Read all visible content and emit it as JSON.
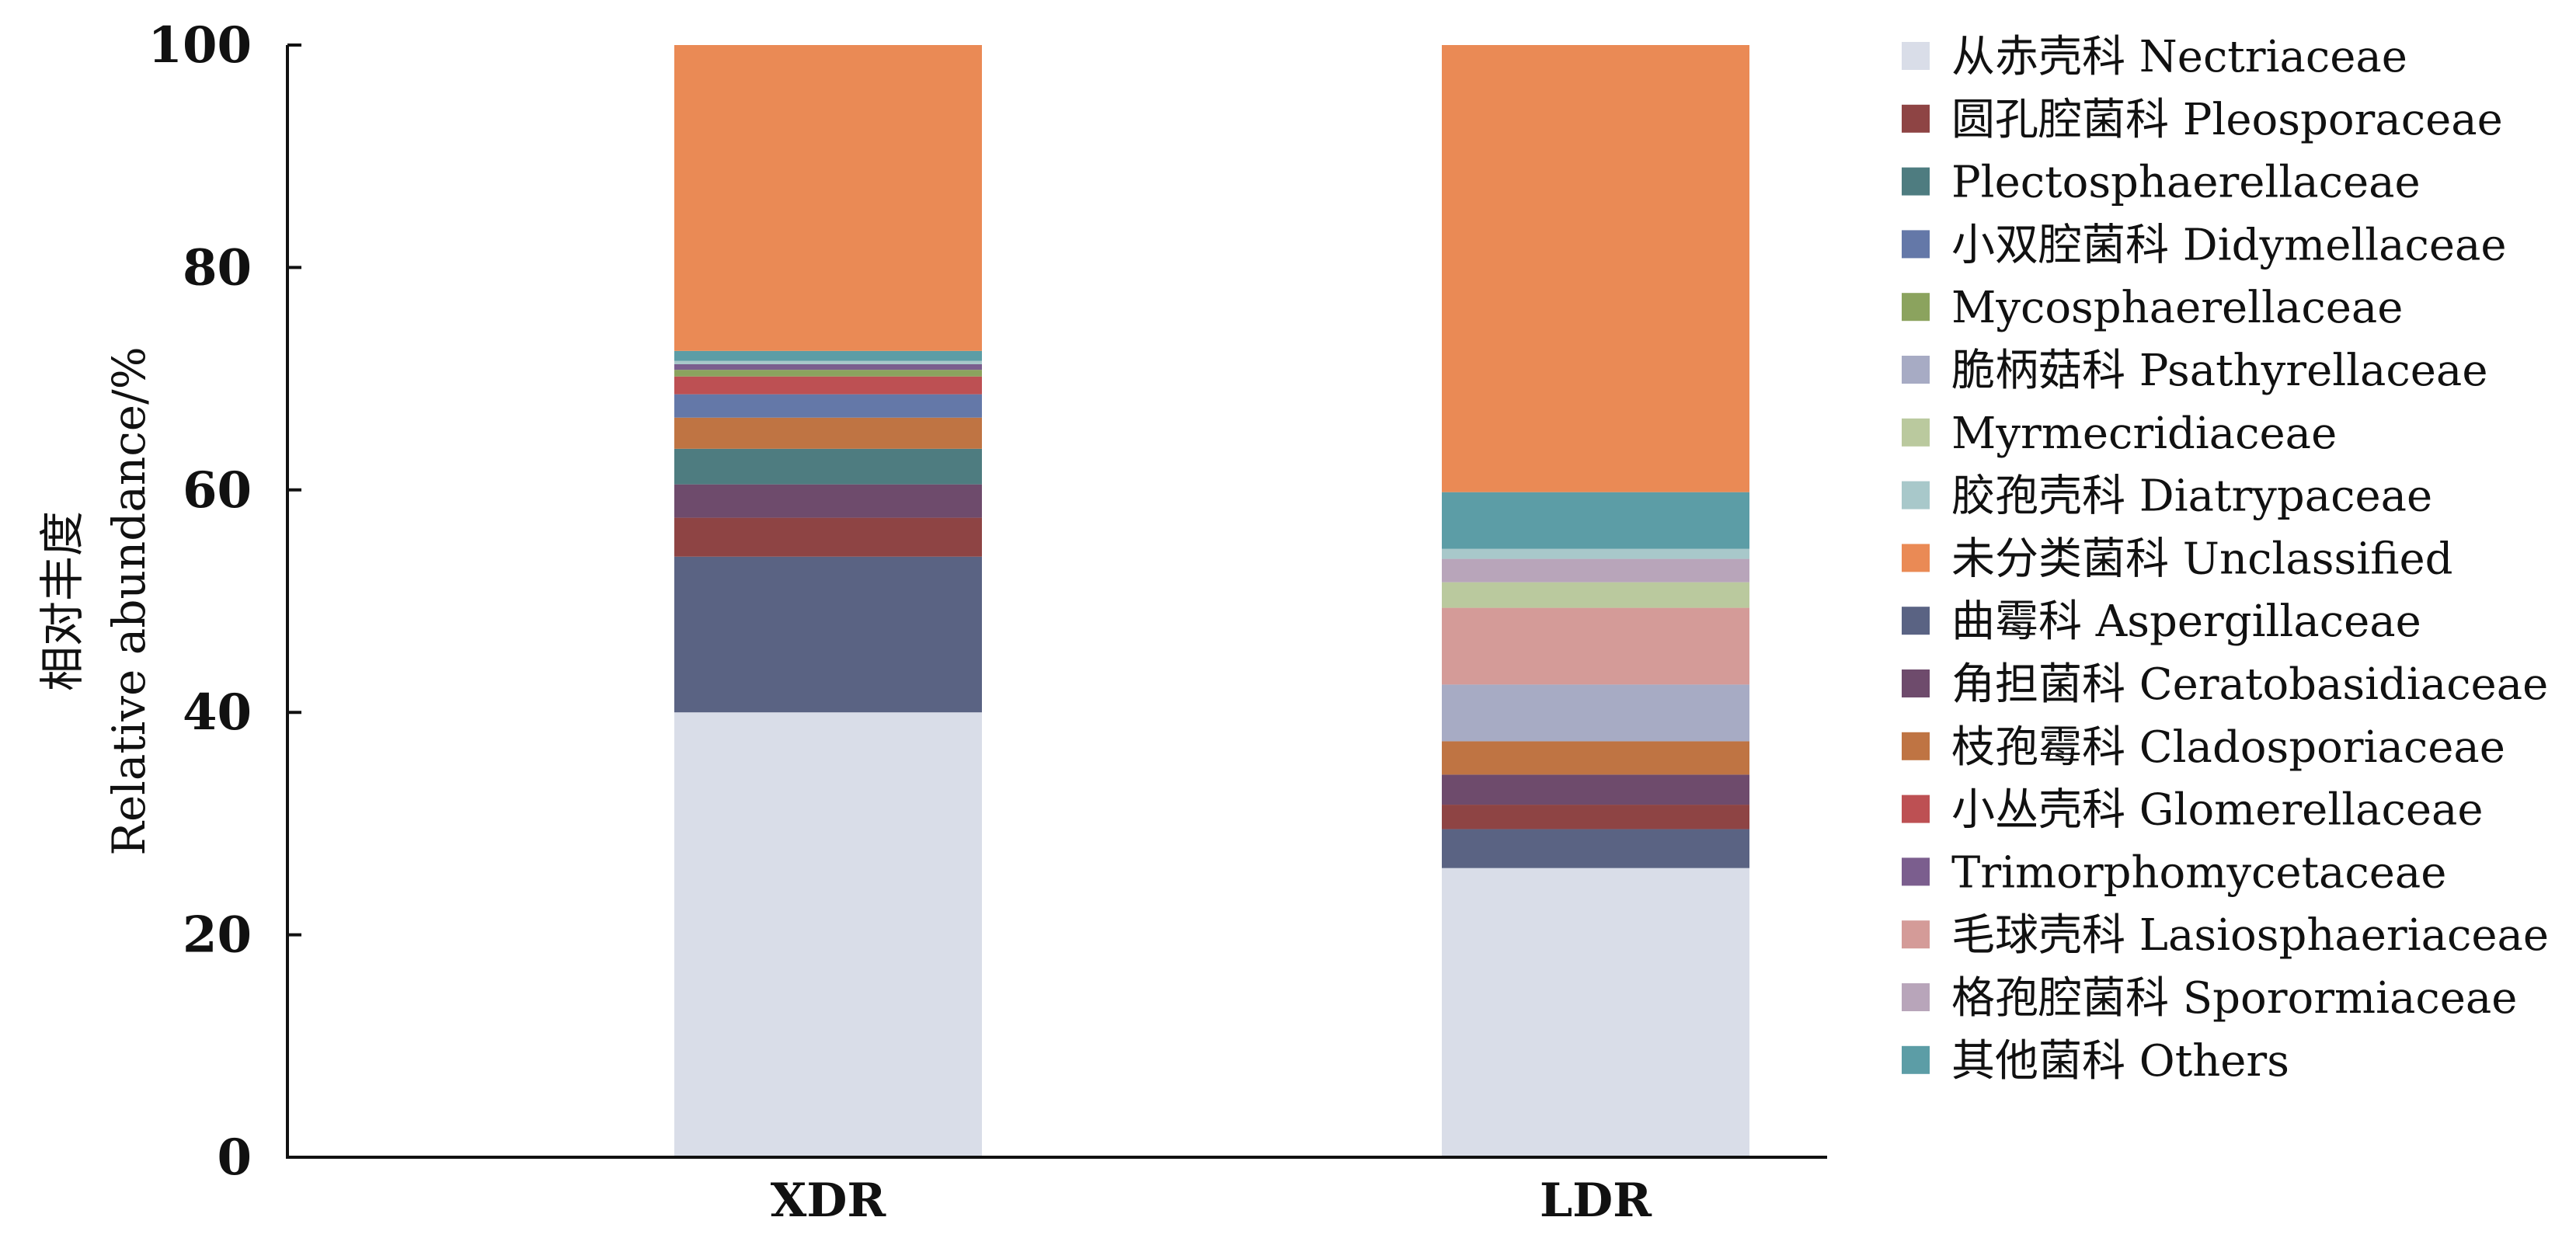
{
  "chart_data": {
    "type": "bar",
    "stacked": true,
    "title": "",
    "xlabel": "",
    "ylabel_lines": [
      "相对丰度",
      "Relative abundance/%"
    ],
    "ylim": [
      0,
      100
    ],
    "yticks": [
      0,
      20,
      40,
      60,
      80,
      100
    ],
    "categories": [
      "XDR",
      "LDR"
    ],
    "legend_position": "right",
    "series": [
      {
        "name": "从赤壳科 Nectriaceae",
        "color": "#D9DDE8",
        "values": [
          40.0,
          26.0
        ]
      },
      {
        "name": "曲霉科 Aspergillaceae",
        "color": "#5A6383",
        "values": [
          14.0,
          3.5
        ]
      },
      {
        "name": "圆孔腔菌科 Pleosporaceae",
        "color": "#8E4444",
        "values": [
          3.5,
          2.2
        ]
      },
      {
        "name": "角担菌科 Ceratobasidiaceae",
        "color": "#6E4B6C",
        "values": [
          3.0,
          2.7
        ]
      },
      {
        "name": "Plectosphaerellaceae",
        "color": "#4E7C80",
        "values": [
          3.2,
          0.0
        ]
      },
      {
        "name": "枝孢霉科 Cladosporiaceae",
        "color": "#BF7443",
        "values": [
          2.8,
          3.0
        ]
      },
      {
        "name": "小双腔菌科 Didymellaceae",
        "color": "#6478A8",
        "values": [
          2.1,
          0.0
        ]
      },
      {
        "name": "脆柄菇科 Psathyrellaceae",
        "color": "#A7ABC4",
        "values": [
          0.0,
          5.1
        ]
      },
      {
        "name": "毛球壳科 Lasiosphaeriaceae",
        "color": "#D49B98",
        "values": [
          0.0,
          6.9
        ]
      },
      {
        "name": "小丛壳科 Glomerellaceae",
        "color": "#BD5053",
        "values": [
          1.6,
          0.0
        ]
      },
      {
        "name": "Myrmecridiaceae",
        "color": "#BAC99E",
        "values": [
          0.0,
          2.3
        ]
      },
      {
        "name": "Mycosphaerellaceae",
        "color": "#8BA35E",
        "values": [
          0.6,
          0.0
        ]
      },
      {
        "name": "Trimorphomycetaceae",
        "color": "#7B5E8E",
        "values": [
          0.5,
          0.0
        ]
      },
      {
        "name": "格孢腔菌科 Sporormiaceae",
        "color": "#B8A5BA",
        "values": [
          0.0,
          2.1
        ]
      },
      {
        "name": "胶孢壳科 Diatrypaceae",
        "color": "#A8C8CA",
        "values": [
          0.3,
          0.9
        ]
      },
      {
        "name": "其他菌科 Others",
        "color": "#5C9DA6",
        "values": [
          0.9,
          5.1
        ]
      },
      {
        "name": "未分类菌科 Unclassified",
        "color": "#EA8A55",
        "values": [
          27.5,
          40.2
        ]
      }
    ],
    "legend_order": [
      "从赤壳科 Nectriaceae",
      "圆孔腔菌科 Pleosporaceae",
      "Plectosphaerellaceae",
      "小双腔菌科 Didymellaceae",
      "Mycosphaerellaceae",
      "脆柄菇科 Psathyrellaceae",
      "Myrmecridiaceae",
      "胶孢壳科 Diatrypaceae",
      "未分类菌科 Unclassified",
      "曲霉科 Aspergillaceae",
      "角担菌科 Ceratobasidiaceae",
      "枝孢霉科 Cladosporiaceae",
      "小丛壳科 Glomerellaceae",
      "Trimorphomycetaceae",
      "毛球壳科 Lasiosphaeriaceae",
      "格孢腔菌科 Sporormiaceae",
      "其他菌科 Others"
    ]
  }
}
